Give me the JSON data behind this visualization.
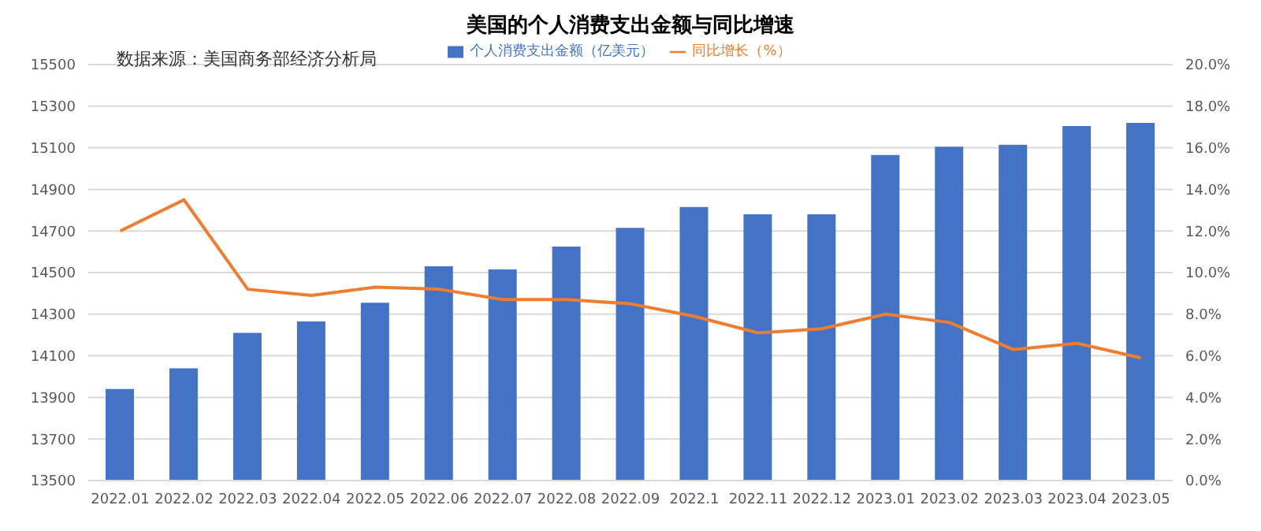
{
  "chart_data": {
    "type": "bar",
    "title": "美国的个人消费支出金额与同比增速",
    "categories": [
      "2022.01",
      "2022.02",
      "2022.03",
      "2022.04",
      "2022.05",
      "2022.06",
      "2022.07",
      "2022.08",
      "2022.09",
      "2022.1",
      "2022.11",
      "2022.12",
      "2023.01",
      "2023.02",
      "2023.03",
      "2023.04",
      "2023.05"
    ],
    "series": [
      {
        "name": "个人消费支出金额（亿美元）",
        "color": "#4472c4",
        "values": [
          13940,
          14040,
          14210,
          14265,
          14355,
          14530,
          14515,
          14625,
          14715,
          14815,
          14780,
          14780,
          15065,
          15105,
          15115,
          15205,
          15220
        ]
      },
      {
        "name": "同比增长（%）",
        "type": "line",
        "axis": "y2",
        "color": "#ed7d31",
        "values": [
          12.0,
          13.5,
          9.2,
          8.9,
          9.3,
          9.2,
          8.7,
          8.7,
          8.5,
          7.9,
          7.1,
          7.3,
          8.0,
          7.6,
          6.3,
          6.6,
          5.9
        ]
      }
    ],
    "ylim": [
      13500,
      15500
    ],
    "yticks": [
      13500,
      13700,
      13900,
      14100,
      14300,
      14500,
      14700,
      14900,
      15100,
      15300,
      15500
    ],
    "y2lim": [
      0,
      20
    ],
    "y2ticks": [
      {
        "value": 0,
        "label": "0.0%"
      },
      {
        "value": 2,
        "label": "2.0%"
      },
      {
        "value": 4,
        "label": "4.0%"
      },
      {
        "value": 6,
        "label": "6.0%"
      },
      {
        "value": 8,
        "label": "8.0%"
      },
      {
        "value": 10,
        "label": "10.0%"
      },
      {
        "value": 12,
        "label": "12.0%"
      },
      {
        "value": 14,
        "label": "14.0%"
      },
      {
        "value": 16,
        "label": "16.0%"
      },
      {
        "value": 18,
        "label": "18.0%"
      },
      {
        "value": 20,
        "label": "20.0%"
      }
    ],
    "annotations": [
      "数据来源：美国商务部经济分析局"
    ],
    "grid": "y",
    "legend": "top",
    "marker": "none",
    "line_style": "solid"
  }
}
